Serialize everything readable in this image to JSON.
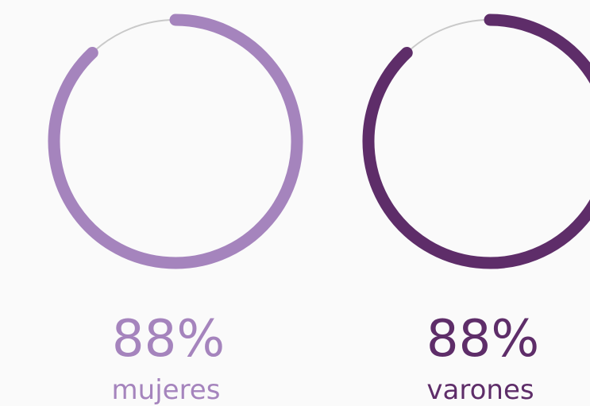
{
  "chart_data": {
    "type": "ring",
    "categories": [
      "mujeres",
      "varones"
    ],
    "values": [
      88,
      88
    ],
    "value_labels": [
      "88%",
      "88%"
    ],
    "colors": [
      "#a584bd",
      "#5e2d69"
    ],
    "ylim": [
      0,
      100
    ]
  }
}
